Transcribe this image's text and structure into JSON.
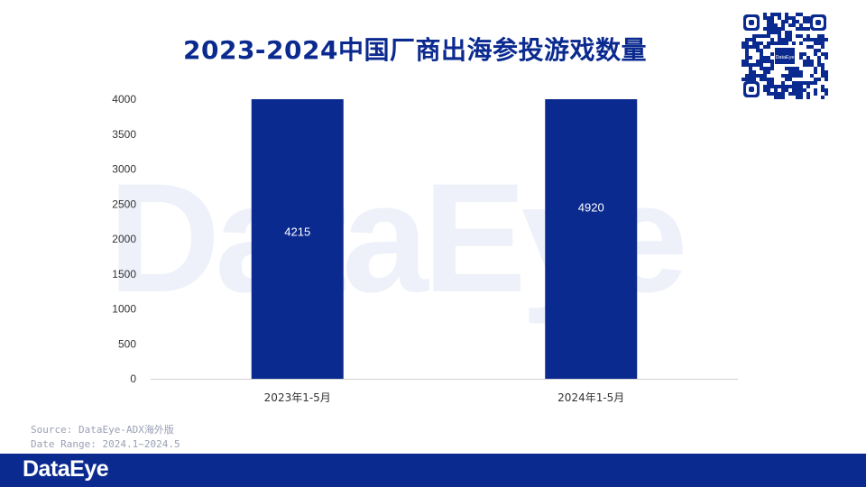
{
  "header": {
    "title": "2023-2024中国厂商出海参投游戏数量"
  },
  "watermark": "DataEye",
  "qr_code": {
    "label": "DataEye"
  },
  "source_note": {
    "source": "Source: DataEye-ADX海外版",
    "date_range": "Date Range: 2024.1~2024.5"
  },
  "footer": {
    "logo_text": "DataEye"
  },
  "colors": {
    "bar": "#0b2a8f",
    "brand": "#0b2a8f",
    "title": "#0b2a8f",
    "axis_text": "#333333"
  },
  "chart_data": {
    "type": "bar",
    "title": "2023-2024中国厂商出海参投游戏数量",
    "categories": [
      "2023年1-5月",
      "2024年1-5月"
    ],
    "values": [
      4215,
      4920
    ],
    "data_labels": [
      "4215",
      "4920"
    ],
    "ylim": [
      0,
      4000
    ],
    "yticks": [
      "0",
      "500",
      "1000",
      "1500",
      "2000",
      "2500",
      "3000",
      "3500",
      "4000"
    ],
    "xlabel": "",
    "ylabel": "",
    "grid": false,
    "legend": "none"
  }
}
